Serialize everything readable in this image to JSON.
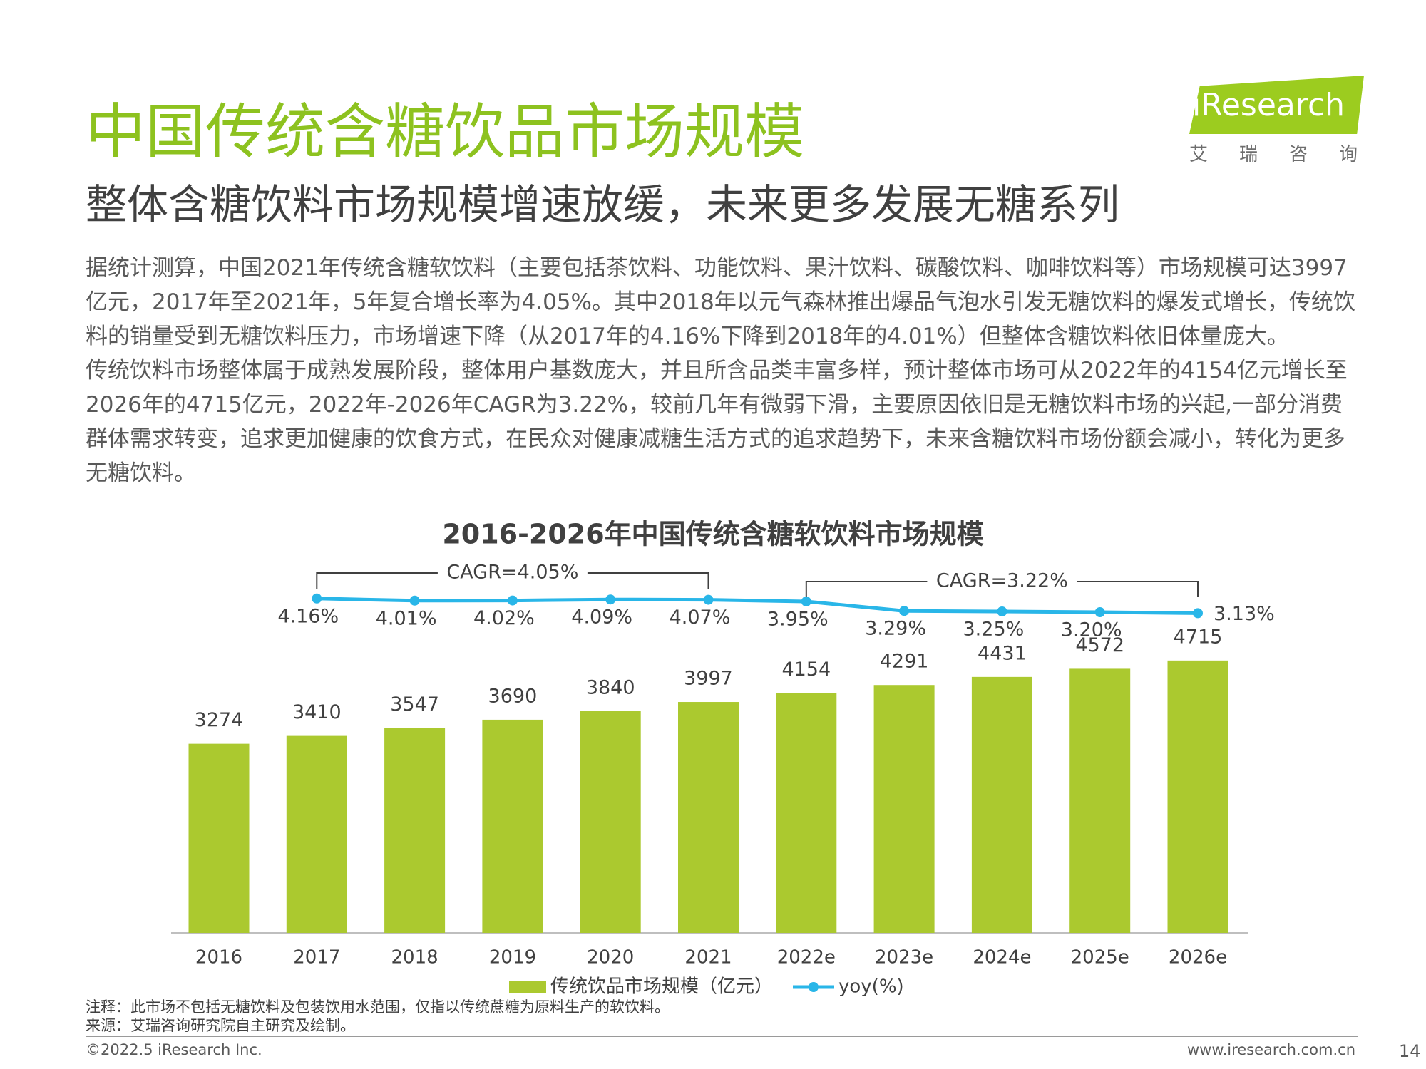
{
  "header": {
    "title": "中国传统含糖饮品市场规模",
    "subtitle": "整体含糖饮料市场规模增速放缓，未来更多发展无糖系列",
    "logo": "iResearch",
    "logo_cn": "艾瑞咨询"
  },
  "body": {
    "paragraphs": [
      "据统计测算，中国2021年传统含糖软饮料（主要包括茶饮料、功能饮料、果汁饮料、碳酸饮料、咖啡饮料等）市场规模可达3997亿元，2017年至2021年，5年复合增长率为4.05%。其中2018年以元气森林推出爆品气泡水引发无糖饮料的爆发式增长，传统饮料的销量受到无糖饮料压力，市场增速下降（从2017年的4.16%下降到2018年的4.01%）但整体含糖饮料依旧体量庞大。",
      "传统饮料市场整体属于成熟发展阶段，整体用户基数庞大，并且所含品类丰富多样，预计整体市场可从2022年的4154亿元增长至2026年的4715亿元，2022年-2026年CAGR为3.22%，较前几年有微弱下滑，主要原因依旧是无糖饮料市场的兴起,一部分消费群体需求转变，追求更加健康的饮食方式，在民众对健康减糖生活方式的追求趋势下，未来含糖饮料市场份额会减小，转化为更多无糖饮料。"
    ]
  },
  "chart_data": {
    "type": "bar",
    "title": "2016-2026年中国传统含糖软饮料市场规模",
    "categories": [
      "2016",
      "2017",
      "2018",
      "2019",
      "2020",
      "2021",
      "2022e",
      "2023e",
      "2024e",
      "2025e",
      "2026e"
    ],
    "series": [
      {
        "name": "传统饮品市场规模（亿元）",
        "type": "bar",
        "color": "#abc92f",
        "values": [
          3274,
          3410,
          3547,
          3690,
          3840,
          3997,
          4154,
          4291,
          4431,
          4572,
          4715
        ]
      },
      {
        "name": "yoy(%)",
        "type": "line",
        "axis": "y2",
        "color": "#29b6e8",
        "values": [
          null,
          4.16,
          4.01,
          4.02,
          4.09,
          4.07,
          3.95,
          3.29,
          3.25,
          3.2,
          3.13
        ],
        "value_labels": [
          null,
          "4.16%",
          "4.01%",
          "4.02%",
          "4.09%",
          "4.07%",
          "3.95%",
          "3.29%",
          "3.25%",
          "3.20%",
          "3.13%"
        ]
      }
    ],
    "ylim": [
      0,
      6280
    ],
    "y2lim": [
      -19.3,
      6.15
    ],
    "annotations": [
      "CAGR=4.05%",
      "CAGR=3.22%"
    ]
  },
  "notes": [
    "注释：此市场不包括无糖饮料及包装饮用水范围，仅指以传统蔗糖为原料生产的软饮料。",
    "来源：艾瑞咨询研究院自主研究及绘制。"
  ],
  "footer": {
    "copyright": "©2022.5 iResearch Inc.",
    "website": "www.iresearch.com.cn",
    "page": "14"
  }
}
